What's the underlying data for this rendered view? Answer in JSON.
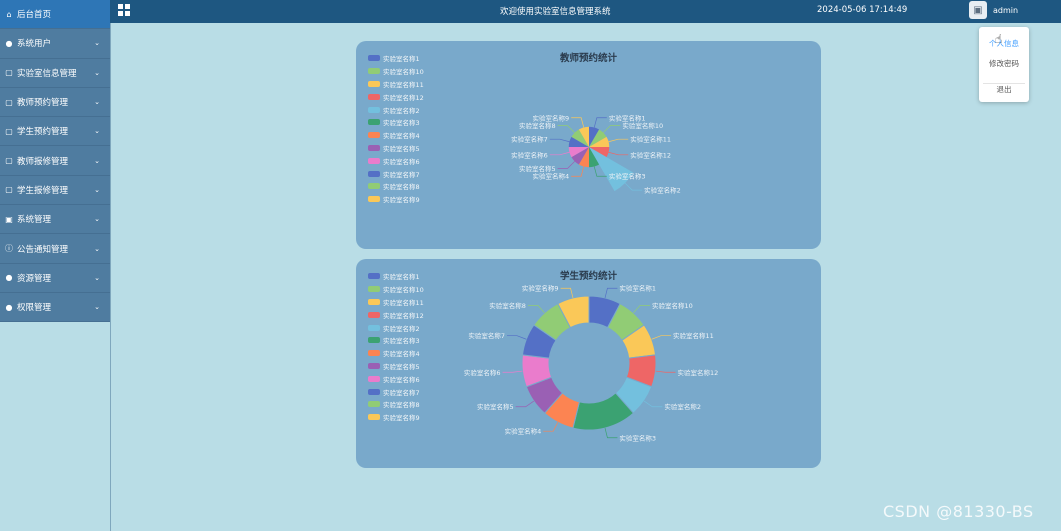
{
  "sidebar": {
    "items": [
      {
        "label": "后台首页",
        "icon": "home-icon"
      },
      {
        "label": "系统用户",
        "icon": "user-icon"
      },
      {
        "label": "实验室信息管理",
        "icon": "document-icon"
      },
      {
        "label": "教师预约管理",
        "icon": "document-icon"
      },
      {
        "label": "学生预约管理",
        "icon": "document-icon"
      },
      {
        "label": "教师报修管理",
        "icon": "document-icon"
      },
      {
        "label": "学生报修管理",
        "icon": "document-icon"
      },
      {
        "label": "系统管理",
        "icon": "picture-icon"
      },
      {
        "label": "公告通知管理",
        "icon": "info-icon"
      },
      {
        "label": "资源管理",
        "icon": "bulb-icon"
      },
      {
        "label": "权限管理",
        "icon": "user-icon"
      }
    ]
  },
  "header": {
    "welcome": "欢迎使用实验室信息管理系统",
    "datetime": "2024-05-06 17:14:49",
    "username": "admin"
  },
  "dropdown": {
    "items": [
      "个人信息",
      "修改密码",
      "退出"
    ]
  },
  "colors": {
    "palette": [
      "#5470c6",
      "#91cc75",
      "#fac858",
      "#ee6666",
      "#73c0de",
      "#3ba272",
      "#fc8452",
      "#9a60b4",
      "#ea7ccc",
      "#5470c6",
      "#91cc75",
      "#fac858"
    ]
  },
  "chart_data": [
    {
      "type": "pie",
      "variant": "rose",
      "title": "教师预约统计",
      "legend": [
        "实验室名称1",
        "实验室名称10",
        "实验室名称11",
        "实验室名称12",
        "实验室名称2",
        "实验室名称3",
        "实验室名称4",
        "实验室名称5",
        "实验室名称6",
        "实验室名称7",
        "实验室名称8",
        "实验室名称9"
      ],
      "categories": [
        "实验室名称1",
        "实验室名称10",
        "实验室名称11",
        "实验室名称12",
        "实验室名称2",
        "实验室名称3",
        "实验室名称4",
        "实验室名称5",
        "实验室名称6",
        "实验室名称7",
        "实验室名称8",
        "实验室名称9"
      ],
      "values": [
        1,
        1,
        1,
        1,
        4,
        1,
        1,
        1,
        1,
        1,
        1,
        1
      ]
    },
    {
      "type": "pie",
      "variant": "donut",
      "title": "学生预约统计",
      "legend": [
        "实验室名称1",
        "实验室名称10",
        "实验室名称11",
        "实验室名称12",
        "实验室名称2",
        "实验室名称3",
        "实验室名称4",
        "实验室名称5",
        "实验室名称6",
        "实验室名称7",
        "实验室名称8",
        "实验室名称9"
      ],
      "categories": [
        "实验室名称1",
        "实验室名称10",
        "实验室名称11",
        "实验室名称12",
        "实验室名称2",
        "实验室名称3",
        "实验室名称4",
        "实验室名称5",
        "实验室名称6",
        "实验室名称7",
        "实验室名称8",
        "实验室名称9"
      ],
      "values": [
        1,
        1,
        1,
        1,
        1,
        2,
        1,
        1,
        1,
        1,
        1,
        1
      ]
    }
  ],
  "watermark": "CSDN @81330-BS"
}
